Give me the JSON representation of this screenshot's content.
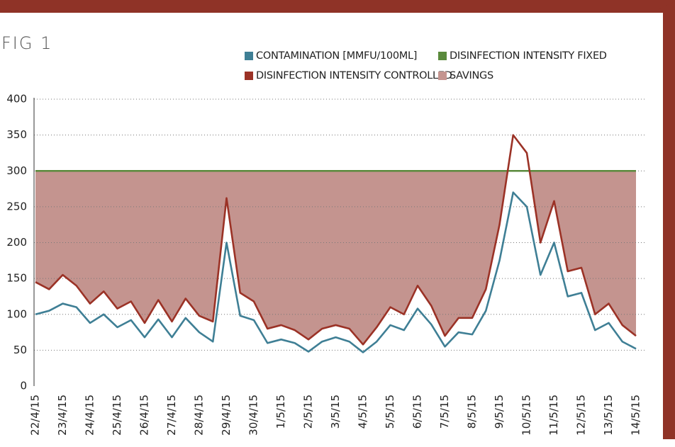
{
  "chart_data": {
    "type": "line",
    "title": "FIG 1",
    "categories": [
      "22/4/15",
      null,
      "23/4/15",
      null,
      "24/4/15",
      null,
      "25/4/15",
      null,
      "26/4/15",
      null,
      "27/4/15",
      null,
      "28/4/15",
      null,
      "29/4/15",
      null,
      "30/4/15",
      null,
      "1/5/15",
      null,
      "2/5/15",
      null,
      "3/5/15",
      null,
      "4/5/15",
      null,
      "5/5/15",
      null,
      "6/5/15",
      null,
      "7/5/15",
      null,
      "8/5/15",
      null,
      "9/5/15",
      null,
      "10/5/15",
      null,
      "11/5/15",
      null,
      "12/5/15",
      null,
      "13/5/15",
      null,
      "14/5/15"
    ],
    "series": [
      {
        "name": "CONTAMINATION [MMFU/100ML]",
        "color": "#3f7f95",
        "values": [
          100,
          105,
          115,
          110,
          88,
          100,
          82,
          92,
          68,
          93,
          68,
          95,
          75,
          62,
          200,
          98,
          92,
          60,
          65,
          60,
          48,
          62,
          68,
          62,
          47,
          62,
          85,
          78,
          108,
          86,
          55,
          75,
          72,
          105,
          175,
          270,
          250,
          155,
          200,
          125,
          130,
          78,
          88,
          62,
          52
        ]
      },
      {
        "name": "DISINFECTION INTENSITY FIXED",
        "color": "#5a8a3c",
        "values": [
          300,
          300,
          300,
          300,
          300,
          300,
          300,
          300,
          300,
          300,
          300,
          300,
          300,
          300,
          300,
          300,
          300,
          300,
          300,
          300,
          300,
          300,
          300,
          300,
          300,
          300,
          300,
          300,
          300,
          300,
          300,
          300,
          300,
          300,
          300,
          300,
          300,
          300,
          300,
          300,
          300,
          300,
          300,
          300,
          300
        ]
      },
      {
        "name": "DISINFECTION INTENSITY CONTROLLED",
        "color": "#9b3226",
        "values": [
          145,
          135,
          155,
          140,
          115,
          132,
          108,
          118,
          88,
          120,
          90,
          122,
          98,
          90,
          262,
          130,
          118,
          80,
          85,
          78,
          65,
          80,
          85,
          80,
          58,
          82,
          110,
          100,
          140,
          112,
          70,
          95,
          95,
          135,
          225,
          350,
          325,
          200,
          258,
          160,
          165,
          100,
          115,
          85,
          70
        ]
      },
      {
        "name": "SAVINGS",
        "color": "#c4948f",
        "values": [
          155,
          165,
          145,
          160,
          185,
          168,
          192,
          182,
          212,
          180,
          210,
          178,
          202,
          210,
          38,
          170,
          182,
          220,
          215,
          222,
          235,
          220,
          215,
          220,
          242,
          218,
          190,
          200,
          160,
          188,
          230,
          205,
          205,
          165,
          75,
          -50,
          -25,
          100,
          42,
          140,
          135,
          200,
          185,
          215,
          230
        ]
      }
    ],
    "ylim": [
      0,
      400
    ],
    "yticks": [
      0,
      50,
      100,
      150,
      200,
      250,
      300,
      350,
      400
    ],
    "grid": true
  }
}
